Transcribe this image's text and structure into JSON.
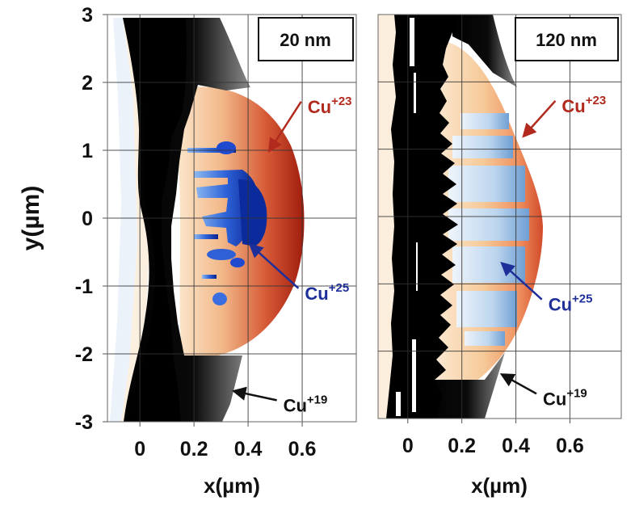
{
  "chart_data": {
    "type": "heatmap",
    "title": "",
    "shared_ylabel": "y(µm)",
    "y_ticks": [
      "3",
      "2",
      "1",
      "0",
      "-1",
      "-2",
      "-3"
    ],
    "y_tick_values": [
      3,
      2,
      1,
      0,
      -1,
      -2,
      -3
    ],
    "ylim": [
      -3,
      3
    ],
    "grid": true,
    "panels": [
      {
        "name": "panel-20nm",
        "inset_label": "20 nm",
        "inset_position": "top-right",
        "xlabel": "x(µm)",
        "xlim": [
          -0.12,
          0.8
        ],
        "x_ticks": [
          "0",
          "0.2",
          "0.4",
          "0.6"
        ],
        "x_tick_values": [
          0,
          0.2,
          0.4,
          0.6
        ],
        "annotations": [
          {
            "species": "Cu",
            "charge": "+23",
            "color": "#b22a1e",
            "text_at": [
              0.62,
              1.55
            ],
            "arrow_to": [
              0.48,
              1.0
            ]
          },
          {
            "species": "Cu",
            "charge": "+25",
            "color": "#1f2f9a",
            "text_at": [
              0.61,
              -1.2
            ],
            "arrow_to": [
              0.41,
              -0.4
            ]
          },
          {
            "species": "Cu",
            "charge": "+19",
            "color": "#111111",
            "text_at": [
              0.53,
              -2.85
            ],
            "arrow_to": [
              0.35,
              -2.55
            ]
          }
        ],
        "regions": [
          {
            "species": "Cu+19",
            "description": "dark gray/black band along left side, widening at top and bottom",
            "color_from": "#000000",
            "color_to": "#8a8a8a"
          },
          {
            "species": "Cu+23",
            "description": "orange-red crescent centered near x≈0.35–0.55, y∈[-1.9, 1.8]",
            "color_from": "#f6d2a8",
            "color_to": "#a3200f"
          },
          {
            "species": "Cu+25",
            "description": "dark blue clusters near x≈0.25–0.42, y∈[-1.3, 1.1]",
            "color_from": "#7fb0ee",
            "color_to": "#0a2a9c"
          }
        ]
      },
      {
        "name": "panel-120nm",
        "inset_label": "120 nm",
        "inset_position": "top-right",
        "xlabel": "x(µm)",
        "xlim": [
          -0.11,
          0.79
        ],
        "x_ticks": [
          "0",
          "0.2",
          "0.4",
          "0.6"
        ],
        "x_tick_values": [
          0,
          0.2,
          0.4,
          0.6
        ],
        "annotations": [
          {
            "species": "Cu",
            "charge": "+23",
            "color": "#b22a1e",
            "text_at": [
              0.57,
              1.55
            ],
            "arrow_to": [
              0.43,
              1.2
            ]
          },
          {
            "species": "Cu",
            "charge": "+25",
            "color": "#1f2f9a",
            "text_at": [
              0.52,
              -1.4
            ],
            "arrow_to": [
              0.35,
              -0.7
            ]
          },
          {
            "species": "Cu",
            "charge": "+19",
            "color": "#111111",
            "text_at": [
              0.5,
              -2.8
            ],
            "arrow_to": [
              0.35,
              -2.35
            ]
          }
        ],
        "regions": [
          {
            "species": "Cu+19",
            "description": "black jagged column x≈-0.07 to 0.13 across full height, gray wedge at top and bottom",
            "color_from": "#000000",
            "color_to": "#8a8a8a"
          },
          {
            "species": "Cu+23",
            "description": "pale orange to red region, edge near x≈0.45–0.5",
            "color_from": "#fbe3c6",
            "color_to": "#d2522f"
          },
          {
            "species": "Cu+25",
            "description": "light blue interior region x≈0.2–0.45, y∈[-1.7, 1.4]",
            "color_from": "#e6eff8",
            "color_to": "#7fa9d6"
          }
        ]
      }
    ]
  }
}
